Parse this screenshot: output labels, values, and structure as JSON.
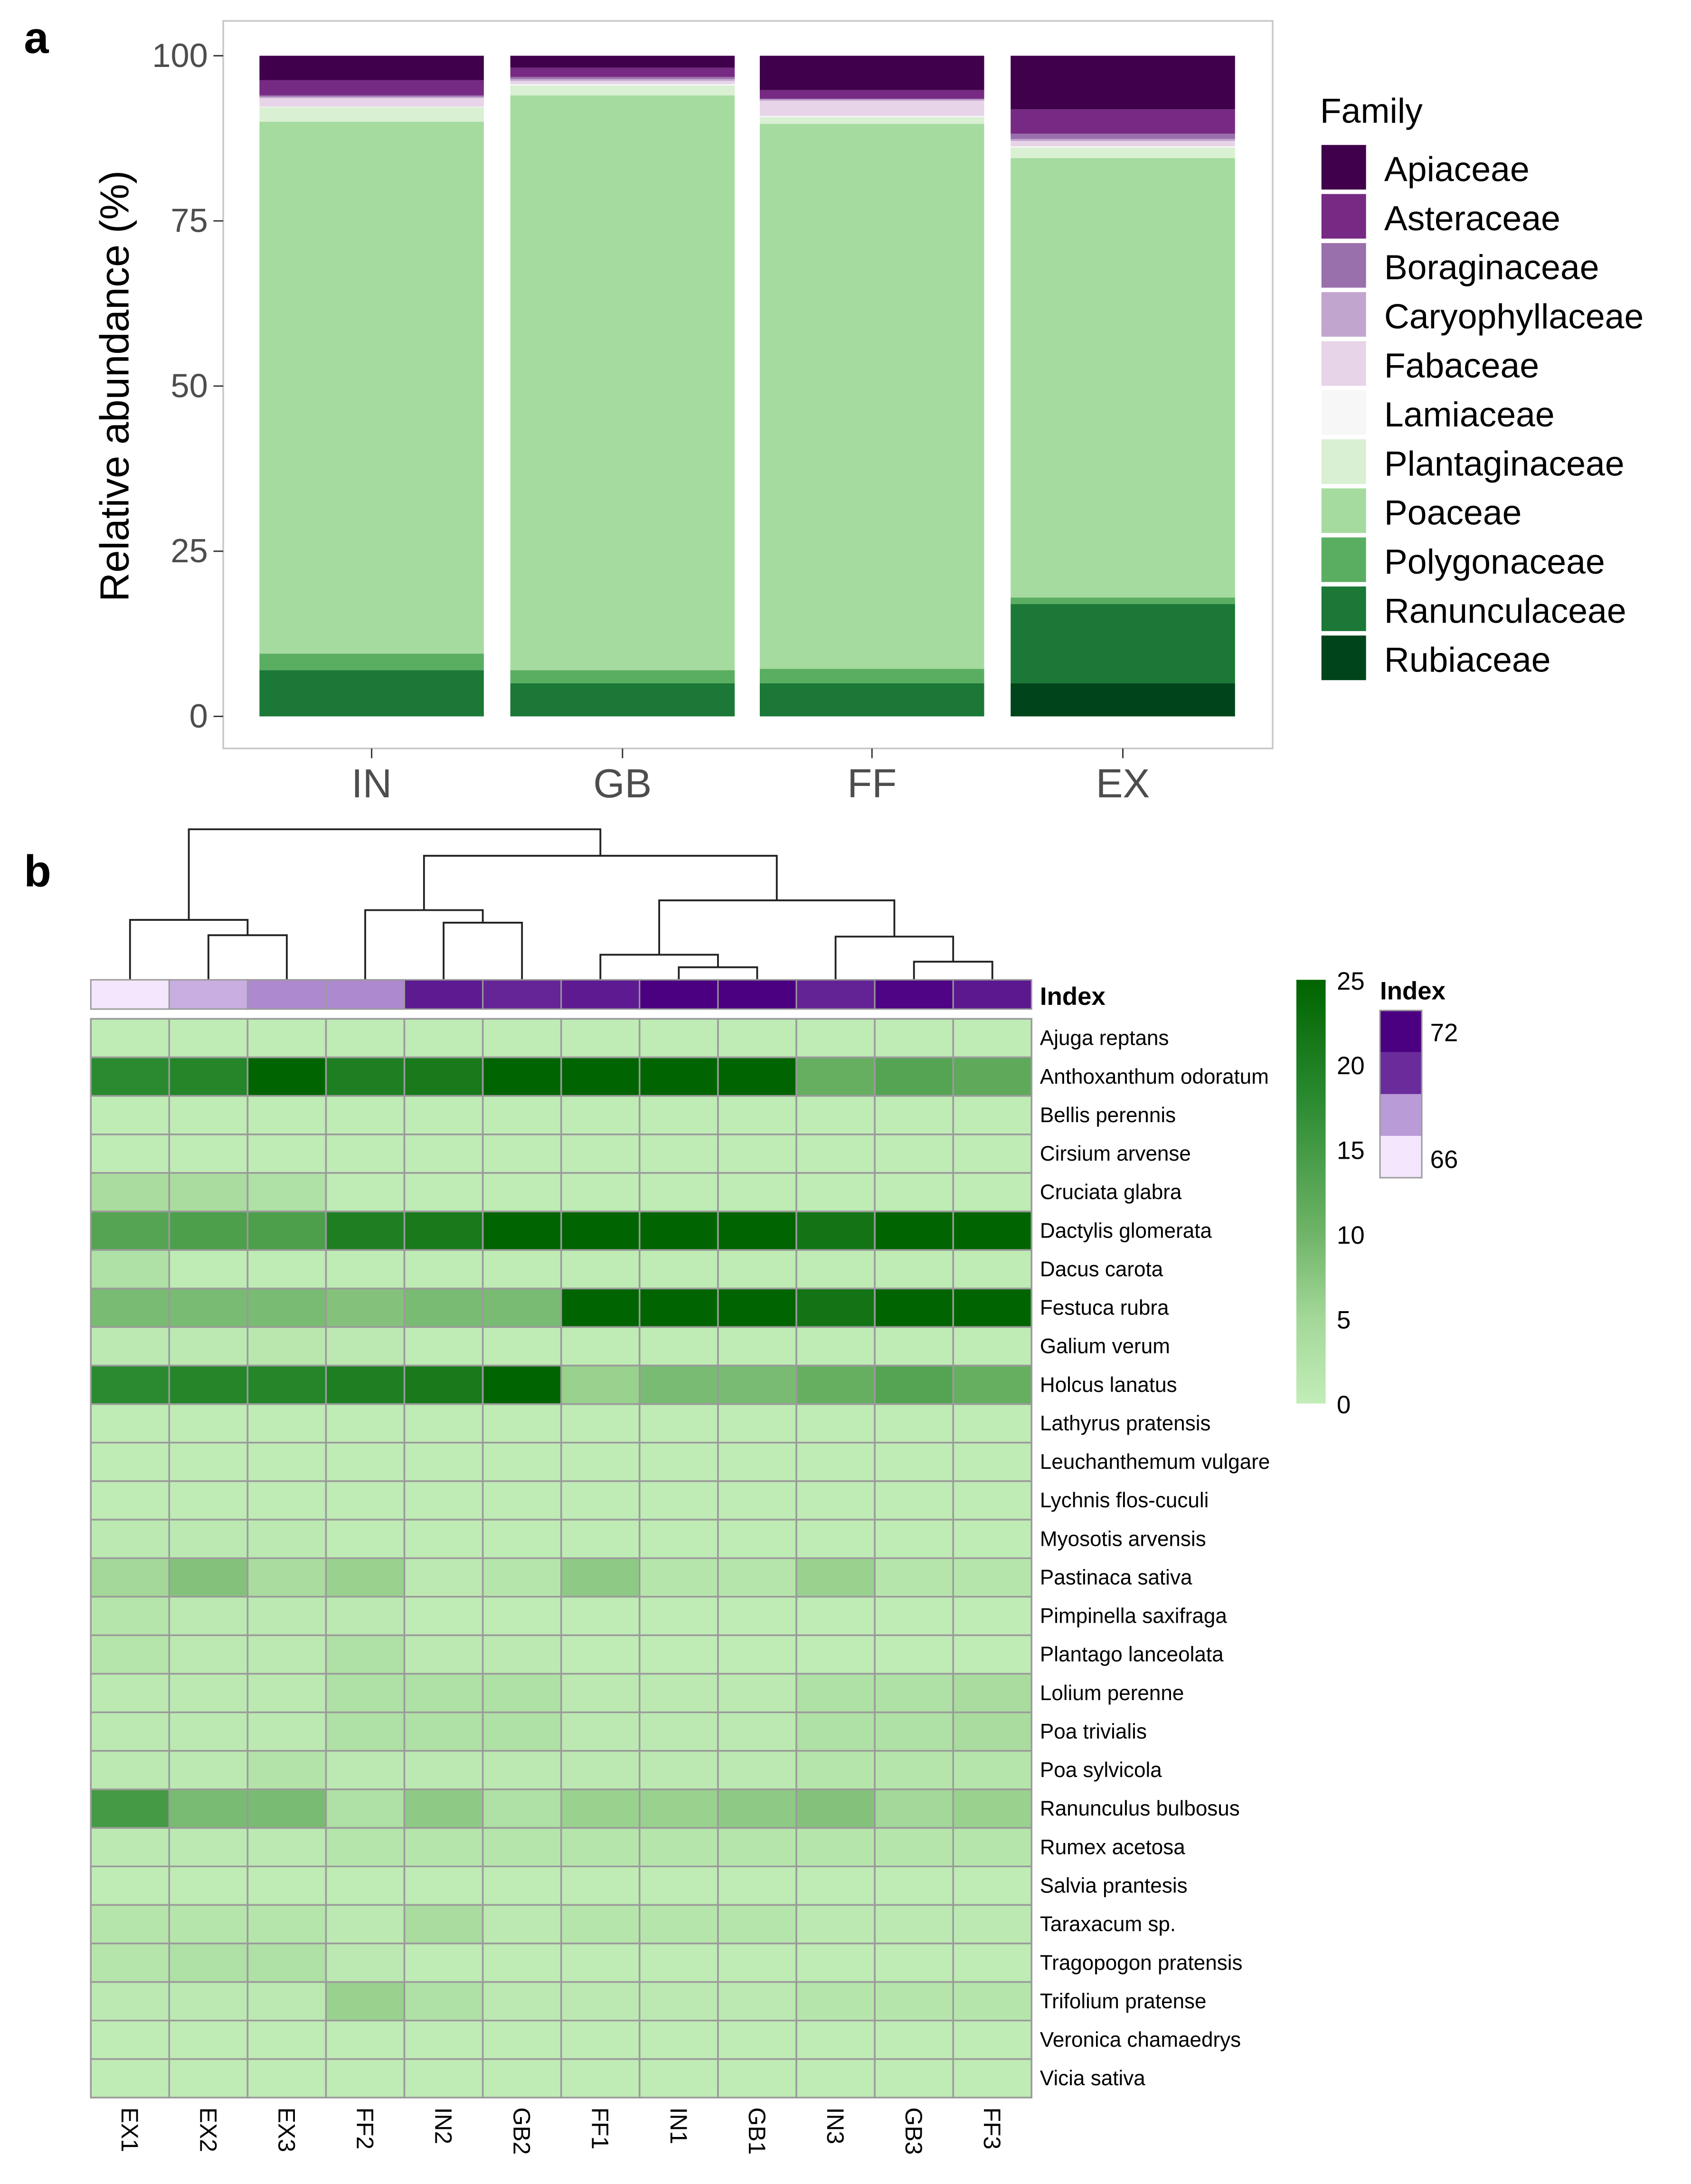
{
  "chart_data": [
    {
      "type": "bar",
      "panel_label": "a",
      "stacked": true,
      "title": "",
      "xlabel": "",
      "ylabel": "Relative abundance (%)",
      "ylim": [
        0,
        100
      ],
      "yticks": [
        "0",
        "25",
        "50",
        "75",
        "100"
      ],
      "categories": [
        "IN",
        "GB",
        "FF",
        "EX"
      ],
      "legend_title": "Family",
      "legend_position": "right",
      "series": [
        {
          "name": "Apiaceae",
          "color": "#40004b",
          "values": [
            3.7,
            1.8,
            5.2,
            8.1
          ]
        },
        {
          "name": "Asteraceae",
          "color": "#762a83",
          "values": [
            2.3,
            1.4,
            1.3,
            3.7
          ]
        },
        {
          "name": "Boraginaceae",
          "color": "#9970ab",
          "values": [
            0.2,
            0.3,
            0.1,
            0.8
          ]
        },
        {
          "name": "Caryophyllaceae",
          "color": "#c2a5cf",
          "values": [
            0.2,
            0.3,
            0.2,
            0.3
          ]
        },
        {
          "name": "Fabaceae",
          "color": "#e7d4e8",
          "values": [
            1.3,
            0.5,
            2.3,
            0.8
          ]
        },
        {
          "name": "Lamiaceae",
          "color": "#f7f7f7",
          "values": [
            0.1,
            0.2,
            0.2,
            0.2
          ]
        },
        {
          "name": "Plantaginaceae",
          "color": "#d9f0d3",
          "values": [
            2.2,
            1.5,
            1.0,
            1.6
          ]
        },
        {
          "name": "Poaceae",
          "color": "#a6dba0",
          "values": [
            80.5,
            87.0,
            82.5,
            66.5
          ]
        },
        {
          "name": "Polygonaceae",
          "color": "#5aae61",
          "values": [
            2.5,
            2.0,
            2.2,
            1.0
          ]
        },
        {
          "name": "Ranunculaceae",
          "color": "#1b7837",
          "values": [
            7.0,
            5.0,
            5.0,
            12.0
          ]
        },
        {
          "name": "Rubiaceae",
          "color": "#00441b",
          "values": [
            0,
            0,
            0,
            5.0
          ]
        }
      ]
    },
    {
      "type": "heatmap",
      "panel_label": "b",
      "columns": [
        "EX1",
        "EX2",
        "EX3",
        "FF2",
        "IN2",
        "GB2",
        "FF1",
        "IN1",
        "GB1",
        "IN3",
        "GB3",
        "FF3"
      ],
      "annotation_label": "Index",
      "index_values": [
        66,
        67.5,
        68.3,
        68.3,
        70.8,
        70.3,
        70.8,
        72,
        72,
        70.4,
        71.8,
        70.9
      ],
      "index_legend": {
        "title": "Index",
        "max_label": "72",
        "min_label": "66",
        "range": [
          66,
          72
        ]
      },
      "color_scale": {
        "range": [
          0,
          25
        ],
        "ticks": [
          "0",
          "5",
          "10",
          "15",
          "20",
          "25"
        ]
      },
      "rows": [
        {
          "name": "Ajuga reptans",
          "values": [
            0.5,
            0.5,
            0.5,
            0.5,
            0.5,
            0.5,
            0.5,
            0.5,
            0.5,
            0.5,
            0.5,
            0.5
          ]
        },
        {
          "name": "Anthoxanthum odoratum",
          "values": [
            18,
            19,
            25,
            20,
            21,
            25,
            25,
            25,
            25,
            11,
            13,
            12
          ]
        },
        {
          "name": "Bellis perennis",
          "values": [
            0.5,
            0.5,
            0.5,
            0.5,
            0.5,
            0.5,
            0.5,
            0.5,
            0.5,
            0.5,
            0.5,
            0.5
          ]
        },
        {
          "name": "Cirsium arvense",
          "values": [
            0.5,
            0.5,
            0.5,
            0.5,
            0.5,
            0.5,
            0.5,
            0.5,
            0.5,
            0.5,
            0.5,
            0.5
          ]
        },
        {
          "name": "Cruciata glabra",
          "values": [
            4,
            4,
            3,
            0.5,
            0.5,
            0.5,
            0.5,
            0.5,
            0.5,
            0.5,
            0.5,
            0.5
          ]
        },
        {
          "name": "Dactylis glomerata",
          "values": [
            13,
            14,
            14,
            20,
            21,
            25,
            25,
            25,
            25,
            22,
            25,
            25
          ]
        },
        {
          "name": "Dacus carota",
          "values": [
            3,
            0.5,
            0.5,
            0.5,
            0.5,
            0.5,
            0.5,
            0.5,
            0.5,
            0.5,
            0.5,
            0.5
          ]
        },
        {
          "name": "Festuca rubra",
          "values": [
            9,
            9,
            9,
            8,
            9,
            9,
            25,
            25,
            25,
            22,
            25,
            25
          ]
        },
        {
          "name": "Galium verum",
          "values": [
            1,
            1,
            1.5,
            1,
            0.5,
            0.5,
            0.5,
            0.5,
            0.5,
            0.5,
            0.5,
            0.5
          ]
        },
        {
          "name": "Holcus lanatus",
          "values": [
            18,
            19,
            19,
            20,
            21,
            25,
            6,
            9,
            9,
            11,
            13,
            11
          ]
        },
        {
          "name": "Lathyrus pratensis",
          "values": [
            0.5,
            0.5,
            0.5,
            0.5,
            0.5,
            0.5,
            0.5,
            0.5,
            0.5,
            0.5,
            0.5,
            0.5
          ]
        },
        {
          "name": "Leuchanthemum vulgare",
          "values": [
            0.5,
            0.5,
            0.5,
            0.5,
            0.5,
            0.5,
            0.5,
            0.5,
            0.5,
            0.5,
            0.5,
            0.5
          ]
        },
        {
          "name": "Lychnis flos-cuculi",
          "values": [
            0.5,
            0.5,
            0.5,
            0.5,
            0.5,
            0.5,
            0.5,
            0.5,
            0.5,
            0.5,
            0.5,
            0.5
          ]
        },
        {
          "name": "Myosotis arvensis",
          "values": [
            1,
            1,
            1,
            0.5,
            0.5,
            0.5,
            0.5,
            0.5,
            0.5,
            0.5,
            0.5,
            0.5
          ]
        },
        {
          "name": "Pastinaca sativa",
          "values": [
            5,
            8,
            4,
            6,
            1,
            2,
            7,
            2,
            2,
            6,
            2,
            2
          ]
        },
        {
          "name": "Pimpinella saxifraga",
          "values": [
            2,
            1,
            1,
            1,
            0.5,
            0.5,
            0.5,
            0.5,
            0.5,
            0.5,
            0.5,
            0.5
          ]
        },
        {
          "name": "Plantago lanceolata",
          "values": [
            2,
            1,
            1,
            3,
            1,
            1,
            0.5,
            0.5,
            0.5,
            0.5,
            0.5,
            0.5
          ]
        },
        {
          "name": "Lolium perenne",
          "values": [
            1,
            1,
            1,
            3,
            3,
            3,
            1,
            1,
            1,
            3,
            3,
            4
          ]
        },
        {
          "name": "Poa trivialis",
          "values": [
            1,
            1,
            1,
            3,
            3,
            3,
            1,
            1,
            1,
            3,
            3,
            4
          ]
        },
        {
          "name": "Poa sylvicola",
          "values": [
            1,
            1,
            2.5,
            1,
            1,
            1,
            1,
            1,
            1,
            2,
            2,
            2
          ]
        },
        {
          "name": "Ranunculus bulbosus",
          "values": [
            15,
            9,
            9,
            3,
            7,
            3,
            6,
            6,
            7,
            8,
            5,
            6
          ]
        },
        {
          "name": "Rumex acetosa",
          "values": [
            1,
            1,
            1,
            2,
            2,
            2,
            2,
            2,
            2,
            2,
            2,
            2
          ]
        },
        {
          "name": "Salvia prantesis",
          "values": [
            0.5,
            0.5,
            0.5,
            0.5,
            0.5,
            0.5,
            0.5,
            0.5,
            0.5,
            0.5,
            0.5,
            0.5
          ]
        },
        {
          "name": "Taraxacum sp.",
          "values": [
            2,
            2,
            2,
            1,
            4,
            1,
            2,
            2,
            2,
            1,
            1,
            1
          ]
        },
        {
          "name": "Tragopogon pratensis",
          "values": [
            2,
            3,
            3,
            1,
            0.5,
            0.5,
            0.5,
            0.5,
            0.5,
            0.5,
            0.5,
            0.5
          ]
        },
        {
          "name": "Trifolium pratense",
          "values": [
            1,
            1,
            1,
            6,
            3,
            1,
            1,
            1,
            1,
            2,
            2,
            2
          ]
        },
        {
          "name": "Veronica chamaedrys",
          "values": [
            0.5,
            0.5,
            0.5,
            0.5,
            0.5,
            0.5,
            0.5,
            0.5,
            0.5,
            0.5,
            0.5,
            0.5
          ]
        },
        {
          "name": "Vicia sativa",
          "values": [
            0.5,
            0.5,
            0.5,
            0.5,
            0.5,
            0.5,
            0.5,
            0.5,
            0.5,
            0.5,
            0.5,
            0.5
          ]
        }
      ]
    }
  ]
}
